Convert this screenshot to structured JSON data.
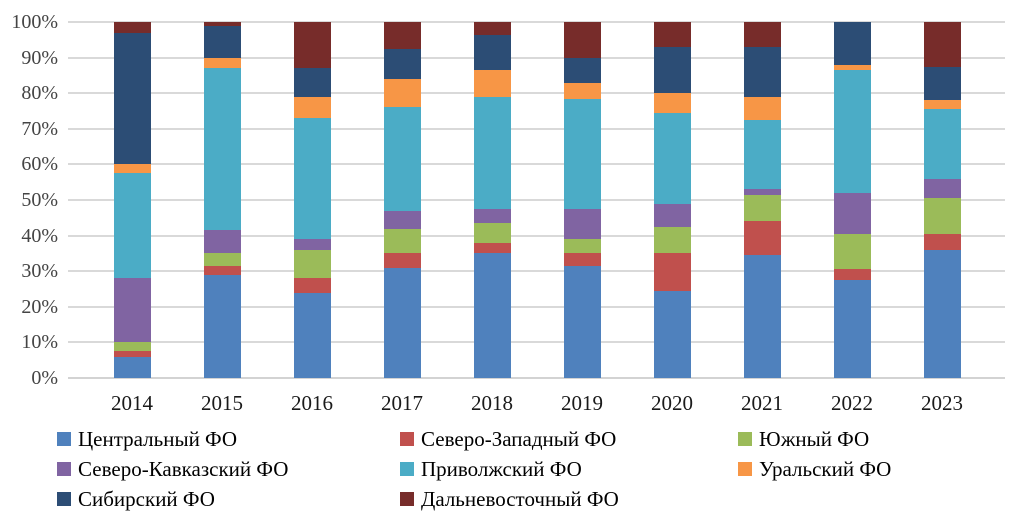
{
  "chart_data": {
    "type": "bar",
    "stacked": true,
    "units": "percent",
    "title": "",
    "xlabel": "",
    "ylabel": "",
    "ylim": [
      0,
      100
    ],
    "grid": true,
    "legend_position": "bottom",
    "categories": [
      "2014",
      "2015",
      "2016",
      "2017",
      "2018",
      "2019",
      "2020",
      "2021",
      "2022",
      "2023"
    ],
    "y_ticks": [
      "0%",
      "10%",
      "20%",
      "30%",
      "40%",
      "50%",
      "60%",
      "70%",
      "80%",
      "90%",
      "100%"
    ],
    "series": [
      {
        "name": "Центральный ФО",
        "color": "#4F81BD",
        "values": [
          6,
          29,
          24,
          31,
          35,
          31.5,
          24.5,
          34.5,
          27.5,
          36
        ]
      },
      {
        "name": "Северо-Западный ФО",
        "color": "#C0504D",
        "values": [
          1.5,
          2.5,
          4,
          4,
          3,
          3.5,
          10.5,
          9.5,
          3,
          4.5
        ]
      },
      {
        "name": "Южный ФО",
        "color": "#9BBB59",
        "values": [
          2.5,
          3.5,
          8,
          7,
          5.5,
          4,
          7.5,
          7.5,
          10,
          10
        ]
      },
      {
        "name": "Северо-Кавказский ФО",
        "color": "#8064A2",
        "values": [
          18,
          6.5,
          3,
          5,
          4,
          8.5,
          6.5,
          1.5,
          11.5,
          5.5
        ]
      },
      {
        "name": "Приволжский ФО",
        "color": "#4BACC6",
        "values": [
          29.5,
          45.5,
          34,
          29,
          31.5,
          31,
          25.5,
          19.5,
          34.5,
          19.5
        ]
      },
      {
        "name": "Уральский ФО",
        "color": "#F79646",
        "values": [
          2.5,
          3,
          6,
          8,
          7.5,
          4.5,
          5.5,
          6.5,
          1.5,
          2.5
        ]
      },
      {
        "name": "Сибирский ФО",
        "color": "#2C4D75",
        "values": [
          37,
          9,
          8,
          8.5,
          10,
          7,
          13,
          14,
          12,
          9.5
        ]
      },
      {
        "name": "Дальневосточный ФО",
        "color": "#772C2A",
        "values": [
          3,
          1,
          13,
          7.5,
          3.5,
          10,
          7,
          7,
          0,
          12.5
        ]
      }
    ]
  }
}
